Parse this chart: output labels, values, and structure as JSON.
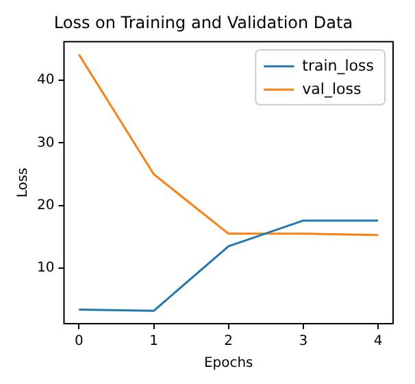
{
  "chart_data": {
    "type": "line",
    "title": "Loss on Training and Validation Data",
    "xlabel": "Epochs",
    "ylabel": "Loss",
    "x": [
      0,
      1,
      2,
      3,
      4
    ],
    "series": [
      {
        "name": "train_loss",
        "color": "#1f77b4",
        "values": [
          3.4,
          3.2,
          13.5,
          17.6,
          17.6
        ]
      },
      {
        "name": "val_loss",
        "color": "#ff7f0e",
        "values": [
          44.1,
          25.0,
          15.5,
          15.5,
          15.3
        ]
      }
    ],
    "xlim": [
      -0.2,
      4.2
    ],
    "xticks": [
      0,
      1,
      2,
      3,
      4
    ],
    "ylim": [
      1.15,
      46.15
    ],
    "yticks": [
      10,
      20,
      30,
      40
    ],
    "grid": false,
    "legend": "top right",
    "marker": "none",
    "line_style": "solid"
  }
}
